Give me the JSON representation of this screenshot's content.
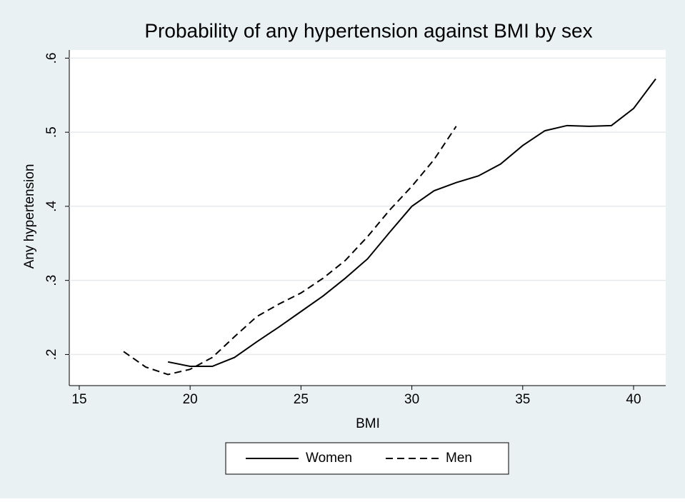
{
  "chart_data": {
    "type": "line",
    "title": "Probability of any hypertension against BMI by sex",
    "x_label": "BMI",
    "y_label": "Any hypertension",
    "xlim": [
      14.55,
      41.45
    ],
    "xticks": [
      15,
      20,
      25,
      30,
      35,
      40
    ],
    "ylim": [
      0.158,
      0.611
    ],
    "yticks": [
      {
        "value": 0.2,
        "label": ".2"
      },
      {
        "value": 0.3,
        "label": ".3"
      },
      {
        "value": 0.4,
        "label": ".4"
      },
      {
        "value": 0.5,
        "label": ".5"
      },
      {
        "value": 0.6,
        "label": ".6"
      }
    ],
    "grid": true,
    "legend": "bottom",
    "series": [
      {
        "name": "Women",
        "color": "#000000",
        "linestyle": "solid",
        "x": [
          19,
          20,
          21,
          22,
          23,
          24,
          25,
          26,
          27,
          28,
          29,
          30,
          31,
          32,
          33,
          34,
          35,
          36,
          37,
          38,
          39,
          40,
          41
        ],
        "values": [
          0.19,
          0.184,
          0.184,
          0.196,
          0.217,
          0.237,
          0.258,
          0.279,
          0.303,
          0.329,
          0.365,
          0.4,
          0.421,
          0.432,
          0.441,
          0.457,
          0.482,
          0.502,
          0.509,
          0.508,
          0.509,
          0.532,
          0.572
        ]
      },
      {
        "name": "Men",
        "color": "#000000",
        "linestyle": "dashed",
        "x": [
          17,
          18,
          19,
          20,
          21,
          22,
          23,
          24,
          25,
          26,
          27,
          28,
          29,
          30,
          31,
          32
        ],
        "values": [
          0.204,
          0.183,
          0.173,
          0.18,
          0.196,
          0.224,
          0.251,
          0.268,
          0.283,
          0.303,
          0.327,
          0.359,
          0.395,
          0.427,
          0.463,
          0.508
        ]
      }
    ]
  }
}
